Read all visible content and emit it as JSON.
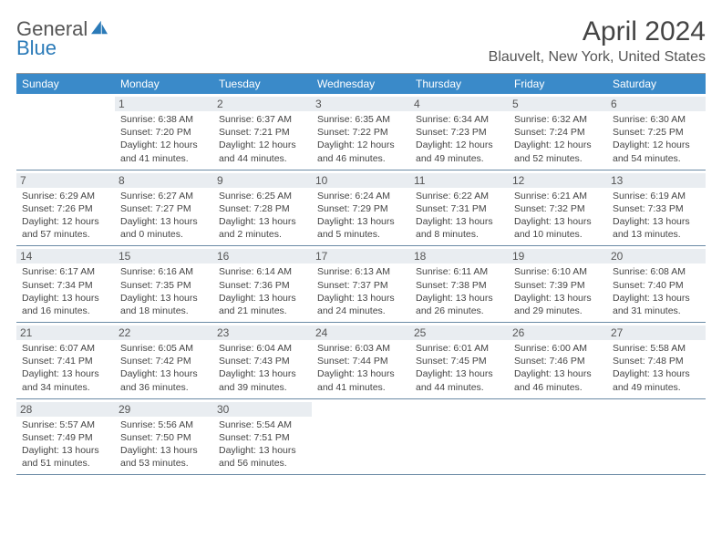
{
  "logo": {
    "text1": "General",
    "text2": "Blue"
  },
  "title": "April 2024",
  "location": "Blauvelt, New York, United States",
  "colors": {
    "header_bg": "#3a8ac9",
    "header_text": "#ffffff",
    "daynum_bg": "#e9edf1",
    "week_border": "#6a8aa5",
    "logo_blue": "#2a7ab8"
  },
  "day_names": [
    "Sunday",
    "Monday",
    "Tuesday",
    "Wednesday",
    "Thursday",
    "Friday",
    "Saturday"
  ],
  "weeks": [
    [
      {
        "empty": true
      },
      {
        "n": "1",
        "sr": "6:38 AM",
        "ss": "7:20 PM",
        "dl": "12 hours and 41 minutes."
      },
      {
        "n": "2",
        "sr": "6:37 AM",
        "ss": "7:21 PM",
        "dl": "12 hours and 44 minutes."
      },
      {
        "n": "3",
        "sr": "6:35 AM",
        "ss": "7:22 PM",
        "dl": "12 hours and 46 minutes."
      },
      {
        "n": "4",
        "sr": "6:34 AM",
        "ss": "7:23 PM",
        "dl": "12 hours and 49 minutes."
      },
      {
        "n": "5",
        "sr": "6:32 AM",
        "ss": "7:24 PM",
        "dl": "12 hours and 52 minutes."
      },
      {
        "n": "6",
        "sr": "6:30 AM",
        "ss": "7:25 PM",
        "dl": "12 hours and 54 minutes."
      }
    ],
    [
      {
        "n": "7",
        "sr": "6:29 AM",
        "ss": "7:26 PM",
        "dl": "12 hours and 57 minutes."
      },
      {
        "n": "8",
        "sr": "6:27 AM",
        "ss": "7:27 PM",
        "dl": "13 hours and 0 minutes."
      },
      {
        "n": "9",
        "sr": "6:25 AM",
        "ss": "7:28 PM",
        "dl": "13 hours and 2 minutes."
      },
      {
        "n": "10",
        "sr": "6:24 AM",
        "ss": "7:29 PM",
        "dl": "13 hours and 5 minutes."
      },
      {
        "n": "11",
        "sr": "6:22 AM",
        "ss": "7:31 PM",
        "dl": "13 hours and 8 minutes."
      },
      {
        "n": "12",
        "sr": "6:21 AM",
        "ss": "7:32 PM",
        "dl": "13 hours and 10 minutes."
      },
      {
        "n": "13",
        "sr": "6:19 AM",
        "ss": "7:33 PM",
        "dl": "13 hours and 13 minutes."
      }
    ],
    [
      {
        "n": "14",
        "sr": "6:17 AM",
        "ss": "7:34 PM",
        "dl": "13 hours and 16 minutes."
      },
      {
        "n": "15",
        "sr": "6:16 AM",
        "ss": "7:35 PM",
        "dl": "13 hours and 18 minutes."
      },
      {
        "n": "16",
        "sr": "6:14 AM",
        "ss": "7:36 PM",
        "dl": "13 hours and 21 minutes."
      },
      {
        "n": "17",
        "sr": "6:13 AM",
        "ss": "7:37 PM",
        "dl": "13 hours and 24 minutes."
      },
      {
        "n": "18",
        "sr": "6:11 AM",
        "ss": "7:38 PM",
        "dl": "13 hours and 26 minutes."
      },
      {
        "n": "19",
        "sr": "6:10 AM",
        "ss": "7:39 PM",
        "dl": "13 hours and 29 minutes."
      },
      {
        "n": "20",
        "sr": "6:08 AM",
        "ss": "7:40 PM",
        "dl": "13 hours and 31 minutes."
      }
    ],
    [
      {
        "n": "21",
        "sr": "6:07 AM",
        "ss": "7:41 PM",
        "dl": "13 hours and 34 minutes."
      },
      {
        "n": "22",
        "sr": "6:05 AM",
        "ss": "7:42 PM",
        "dl": "13 hours and 36 minutes."
      },
      {
        "n": "23",
        "sr": "6:04 AM",
        "ss": "7:43 PM",
        "dl": "13 hours and 39 minutes."
      },
      {
        "n": "24",
        "sr": "6:03 AM",
        "ss": "7:44 PM",
        "dl": "13 hours and 41 minutes."
      },
      {
        "n": "25",
        "sr": "6:01 AM",
        "ss": "7:45 PM",
        "dl": "13 hours and 44 minutes."
      },
      {
        "n": "26",
        "sr": "6:00 AM",
        "ss": "7:46 PM",
        "dl": "13 hours and 46 minutes."
      },
      {
        "n": "27",
        "sr": "5:58 AM",
        "ss": "7:48 PM",
        "dl": "13 hours and 49 minutes."
      }
    ],
    [
      {
        "n": "28",
        "sr": "5:57 AM",
        "ss": "7:49 PM",
        "dl": "13 hours and 51 minutes."
      },
      {
        "n": "29",
        "sr": "5:56 AM",
        "ss": "7:50 PM",
        "dl": "13 hours and 53 minutes."
      },
      {
        "n": "30",
        "sr": "5:54 AM",
        "ss": "7:51 PM",
        "dl": "13 hours and 56 minutes."
      },
      {
        "empty": true
      },
      {
        "empty": true
      },
      {
        "empty": true
      },
      {
        "empty": true
      }
    ]
  ],
  "labels": {
    "sunrise": "Sunrise:",
    "sunset": "Sunset:",
    "daylight": "Daylight:"
  }
}
